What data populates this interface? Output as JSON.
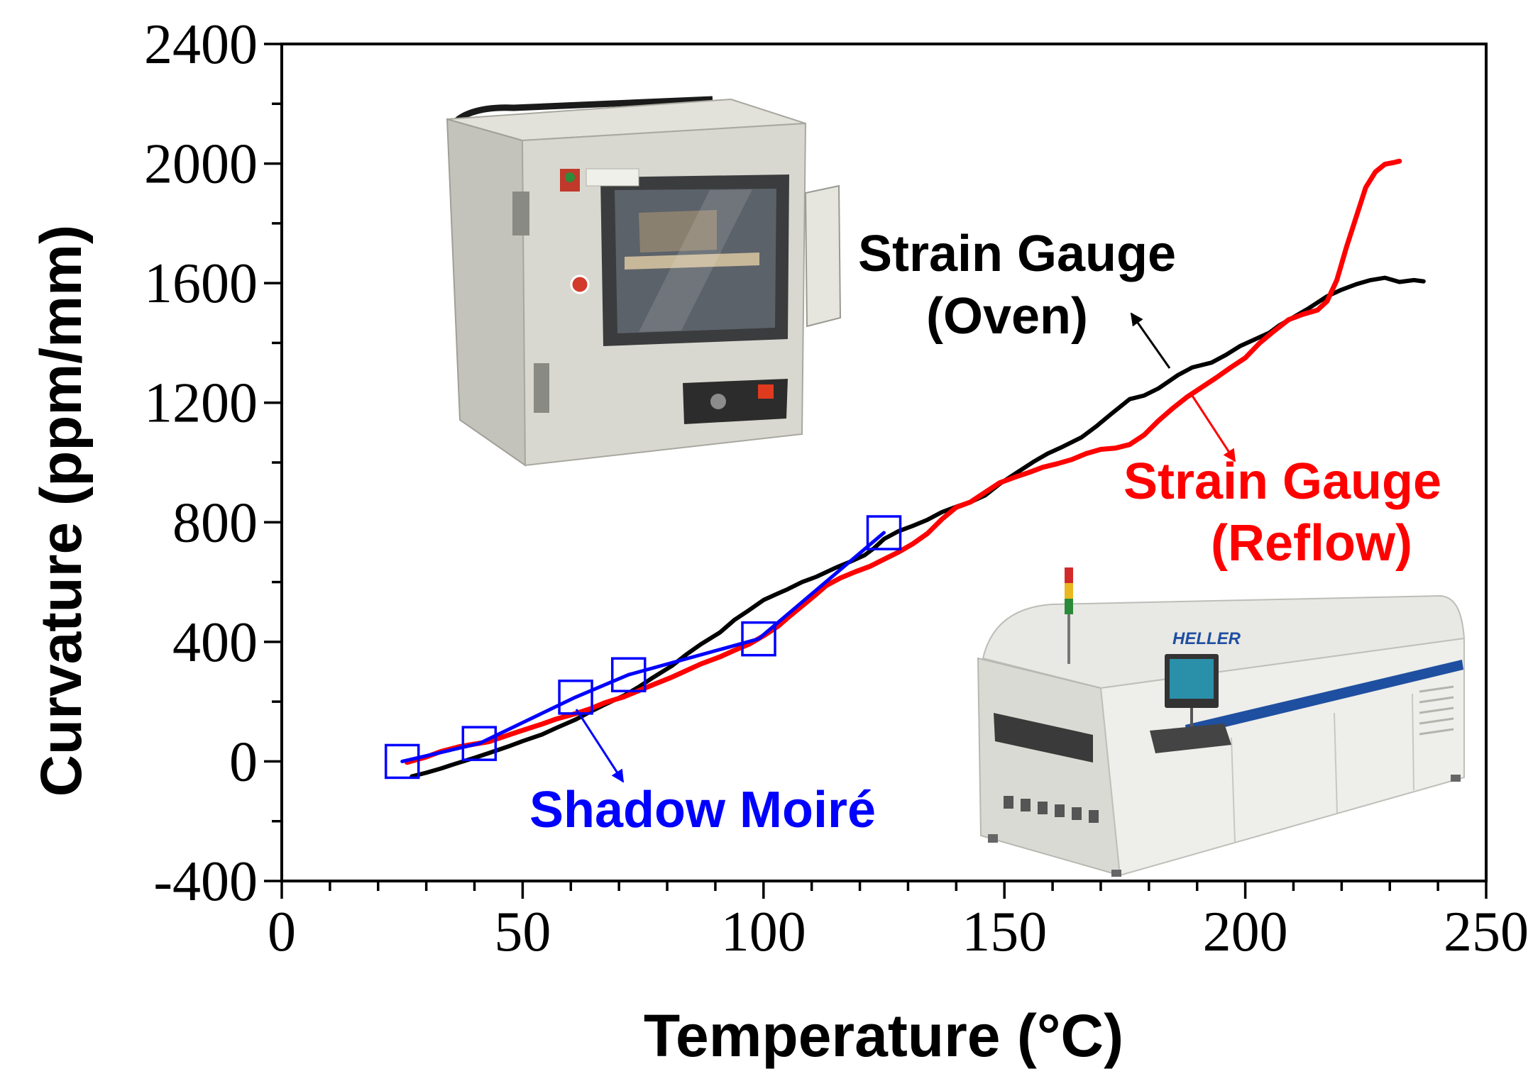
{
  "chart_data": {
    "type": "line",
    "xlabel": "Temperature (°C)",
    "ylabel": "Curvature (ppm/mm)",
    "xlim": [
      0,
      250
    ],
    "ylim": [
      -400,
      2400
    ],
    "xticks": [
      0,
      50,
      100,
      150,
      200,
      250
    ],
    "yticks": [
      -400,
      0,
      400,
      800,
      1200,
      1600,
      2000,
      2400
    ],
    "x_minor_step": 10,
    "y_minor_step": 200,
    "grid": false,
    "legend": "none",
    "series": [
      {
        "label_lines": [
          "Strain Gauge",
          "(Oven)"
        ],
        "color": "#000000",
        "marker": "none",
        "points": [
          [
            27,
            -50
          ],
          [
            30,
            -38
          ],
          [
            33,
            -24
          ],
          [
            36,
            -8
          ],
          [
            40,
            12
          ],
          [
            43,
            28
          ],
          [
            47,
            50
          ],
          [
            50,
            68
          ],
          [
            54,
            90
          ],
          [
            57,
            112
          ],
          [
            61,
            140
          ],
          [
            64,
            166
          ],
          [
            67,
            190
          ],
          [
            71,
            220
          ],
          [
            74,
            248
          ],
          [
            77,
            280
          ],
          [
            81,
            320
          ],
          [
            84,
            358
          ],
          [
            87,
            392
          ],
          [
            91,
            432
          ],
          [
            94,
            474
          ],
          [
            97,
            506
          ],
          [
            100,
            540
          ],
          [
            103,
            562
          ],
          [
            105,
            576
          ],
          [
            108,
            600
          ],
          [
            111,
            618
          ],
          [
            115,
            648
          ],
          [
            118,
            668
          ],
          [
            121,
            690
          ],
          [
            123,
            714
          ],
          [
            125,
            744
          ],
          [
            128,
            770
          ],
          [
            131,
            788
          ],
          [
            134,
            808
          ],
          [
            137,
            834
          ],
          [
            140,
            852
          ],
          [
            143,
            868
          ],
          [
            146,
            890
          ],
          [
            149,
            928
          ],
          [
            152,
            960
          ],
          [
            156,
            1002
          ],
          [
            159,
            1030
          ],
          [
            162,
            1052
          ],
          [
            166,
            1084
          ],
          [
            169,
            1120
          ],
          [
            172,
            1160
          ],
          [
            176,
            1212
          ],
          [
            179,
            1224
          ],
          [
            182,
            1248
          ],
          [
            186,
            1292
          ],
          [
            189,
            1318
          ],
          [
            193,
            1334
          ],
          [
            196,
            1360
          ],
          [
            199,
            1390
          ],
          [
            202,
            1412
          ],
          [
            205,
            1434
          ],
          [
            207,
            1458
          ],
          [
            210,
            1486
          ],
          [
            213,
            1514
          ],
          [
            217,
            1556
          ],
          [
            220,
            1578
          ],
          [
            223,
            1596
          ],
          [
            226,
            1610
          ],
          [
            229,
            1618
          ],
          [
            232,
            1604
          ],
          [
            235,
            1610
          ],
          [
            237,
            1606
          ]
        ]
      },
      {
        "label_lines": [
          "Strain Gauge",
          "(Reflow)"
        ],
        "color": "#ff0000",
        "marker": "none",
        "points": [
          [
            26,
            -3
          ],
          [
            30,
            15
          ],
          [
            33,
            33
          ],
          [
            37,
            50
          ],
          [
            40,
            58
          ],
          [
            43,
            66
          ],
          [
            47,
            88
          ],
          [
            50,
            104
          ],
          [
            54,
            125
          ],
          [
            57,
            142
          ],
          [
            61,
            160
          ],
          [
            64,
            176
          ],
          [
            67,
            196
          ],
          [
            71,
            216
          ],
          [
            74,
            236
          ],
          [
            77,
            256
          ],
          [
            81,
            282
          ],
          [
            84,
            304
          ],
          [
            87,
            326
          ],
          [
            91,
            350
          ],
          [
            94,
            372
          ],
          [
            97,
            392
          ],
          [
            100,
            420
          ],
          [
            103,
            452
          ],
          [
            105,
            480
          ],
          [
            108,
            520
          ],
          [
            111,
            560
          ],
          [
            113,
            588
          ],
          [
            116,
            614
          ],
          [
            119,
            634
          ],
          [
            122,
            652
          ],
          [
            125,
            676
          ],
          [
            128,
            700
          ],
          [
            131,
            728
          ],
          [
            134,
            762
          ],
          [
            137,
            810
          ],
          [
            140,
            850
          ],
          [
            143,
            868
          ],
          [
            146,
            900
          ],
          [
            149,
            932
          ],
          [
            152,
            950
          ],
          [
            155,
            966
          ],
          [
            158,
            984
          ],
          [
            161,
            996
          ],
          [
            164,
            1010
          ],
          [
            167,
            1030
          ],
          [
            170,
            1044
          ],
          [
            173,
            1048
          ],
          [
            176,
            1060
          ],
          [
            179,
            1092
          ],
          [
            182,
            1140
          ],
          [
            185,
            1182
          ],
          [
            188,
            1220
          ],
          [
            191,
            1252
          ],
          [
            194,
            1284
          ],
          [
            197,
            1318
          ],
          [
            200,
            1350
          ],
          [
            203,
            1400
          ],
          [
            206,
            1440
          ],
          [
            209,
            1478
          ],
          [
            212,
            1496
          ],
          [
            215,
            1510
          ],
          [
            217,
            1540
          ],
          [
            219,
            1610
          ],
          [
            221,
            1720
          ],
          [
            223,
            1820
          ],
          [
            225,
            1920
          ],
          [
            227,
            1972
          ],
          [
            229,
            1998
          ],
          [
            231,
            2004
          ],
          [
            232,
            2008
          ]
        ]
      },
      {
        "label_lines": [
          "Shadow Moiré"
        ],
        "color": "#0000ff",
        "marker": "open-square",
        "points": [
          [
            25,
            0
          ],
          [
            41,
            60
          ],
          [
            61,
            215
          ],
          [
            72,
            290
          ],
          [
            99,
            410
          ],
          [
            125,
            765
          ]
        ]
      }
    ]
  },
  "insets": {
    "oven_photo": {
      "icon": "oven-photo"
    },
    "reflow_oven_photo": {
      "icon": "reflow-oven-photo",
      "logo_text": "HELLER"
    }
  }
}
